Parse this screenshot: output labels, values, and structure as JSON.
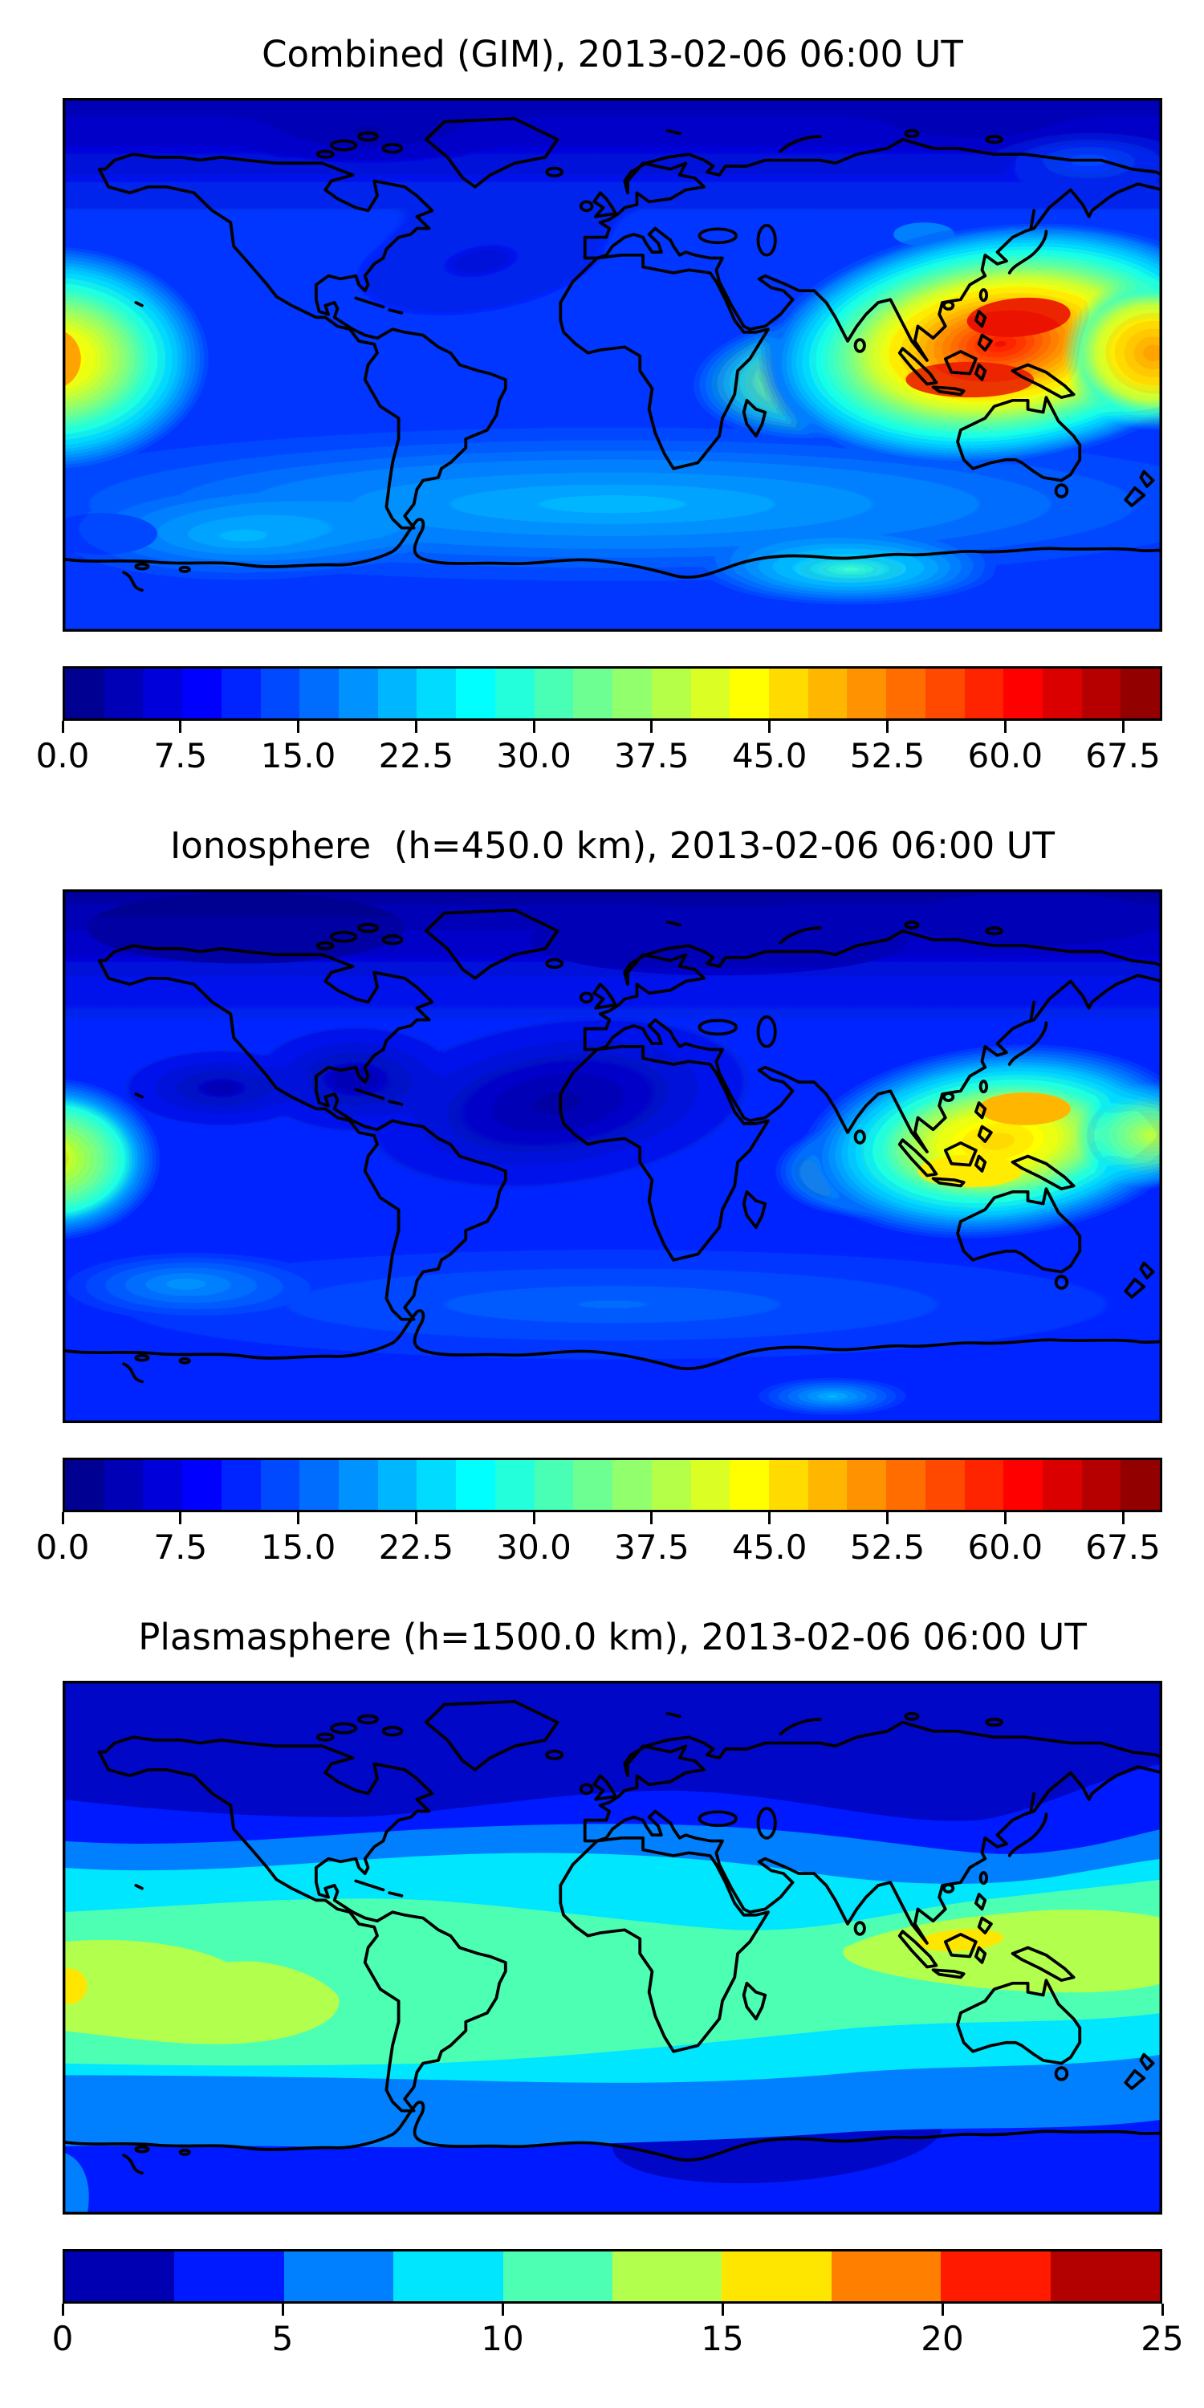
{
  "figure": {
    "background": "#ffffff",
    "panels": [
      {
        "id": "combined",
        "title": "Combined (GIM), 2013-02-06 06:00 UT",
        "colorbar": {
          "min": 0,
          "max": 70,
          "tick_values": [
            0,
            7.5,
            15,
            22.5,
            30,
            37.5,
            45,
            52.5,
            60,
            67.5
          ],
          "tick_labels": [
            "0.0",
            "7.5",
            "15.0",
            "22.5",
            "30.0",
            "37.5",
            "45.0",
            "52.5",
            "60.0",
            "67.5"
          ],
          "colors": [
            "#000092",
            "#0000B6",
            "#0000DB",
            "#0000FF",
            "#0024FF",
            "#0049FF",
            "#006DFF",
            "#0092FF",
            "#00B6FF",
            "#00DBFF",
            "#00FFFF",
            "#24FFDB",
            "#49FFB6",
            "#6DFF92",
            "#92FF6D",
            "#B6FF49",
            "#DBFF24",
            "#FFFF00",
            "#FFDB00",
            "#FFB600",
            "#FF9200",
            "#FF6D00",
            "#FF4900",
            "#FF2400",
            "#FF0000",
            "#DB0000",
            "#B60000",
            "#920000"
          ]
        }
      },
      {
        "id": "ionosphere",
        "title": "Ionosphere  (h=450.0 km), 2013-02-06 06:00 UT",
        "colorbar": {
          "min": 0,
          "max": 70,
          "tick_values": [
            0,
            7.5,
            15,
            22.5,
            30,
            37.5,
            45,
            52.5,
            60,
            67.5
          ],
          "tick_labels": [
            "0.0",
            "7.5",
            "15.0",
            "22.5",
            "30.0",
            "37.5",
            "45.0",
            "52.5",
            "60.0",
            "67.5"
          ],
          "colors": [
            "#000092",
            "#0000B6",
            "#0000DB",
            "#0000FF",
            "#0024FF",
            "#0049FF",
            "#006DFF",
            "#0092FF",
            "#00B6FF",
            "#00DBFF",
            "#00FFFF",
            "#24FFDB",
            "#49FFB6",
            "#6DFF92",
            "#92FF6D",
            "#B6FF49",
            "#DBFF24",
            "#FFFF00",
            "#FFDB00",
            "#FFB600",
            "#FF9200",
            "#FF6D00",
            "#FF4900",
            "#FF2400",
            "#FF0000",
            "#DB0000",
            "#B60000",
            "#920000"
          ]
        }
      },
      {
        "id": "plasmasphere",
        "title": "Plasmasphere (h=1500.0 km), 2013-02-06 06:00 UT",
        "colorbar": {
          "min": 0,
          "max": 25,
          "tick_values": [
            0,
            5,
            10,
            15,
            20,
            25
          ],
          "tick_labels": [
            "0",
            "5",
            "10",
            "15",
            "20",
            "25"
          ],
          "colors": [
            "#0000B3",
            "#001AFF",
            "#0080FF",
            "#00E6FF",
            "#4DFFB3",
            "#B3FF4D",
            "#FFE600",
            "#FF8000",
            "#FF1A00",
            "#B30000"
          ]
        }
      }
    ]
  },
  "chart_data": [
    {
      "type": "heatmap",
      "title": "Combined (GIM), 2013-02-06 06:00 UT",
      "projection": "equirectangular world map, lon -180..180, lat -90..90, black coastlines",
      "colormap": "jet",
      "levels": "filled contours 0 to 70 TECU, step 2.5",
      "colorbar_ticks": [
        0,
        7.5,
        15,
        22.5,
        30,
        37.5,
        45,
        52.5,
        60,
        67.5
      ],
      "legend_position": "horizontal colorbar below map",
      "features": [
        {
          "name": "primary maximum (equatorial anomaly, W Pacific / SE Asia)",
          "lon": 133,
          "lat": 16,
          "value_approx": 62
        },
        {
          "name": "secondary maximum core over Indonesia",
          "lon": 118,
          "lat": -5,
          "value_approx": 57
        },
        {
          "name": "secondary maximum at left map edge (central Pacific)",
          "lon": -180,
          "lat": -2,
          "value_approx": 47
        },
        {
          "name": "equatorial ridge over Indian Ocean / India",
          "lon": 75,
          "lat": 8,
          "value_approx": 40
        },
        {
          "name": "Arctic / high-latitude minimum band",
          "lat": 70,
          "value_approx": 5
        },
        {
          "name": "North Atlantic low",
          "lon": -40,
          "lat": 30,
          "value_approx": 12
        },
        {
          "name": "southern mid-latitude cyan band",
          "lat": -45,
          "value_approx": 22
        }
      ]
    },
    {
      "type": "heatmap",
      "title": "Ionosphere  (h=450.0 km), 2013-02-06 06:00 UT",
      "projection": "equirectangular world map, lon -180..180, lat -90..90, black coastlines",
      "colormap": "jet",
      "levels": "filled contours 0 to 70 TECU, step 2.5",
      "colorbar_ticks": [
        0,
        7.5,
        15,
        22.5,
        30,
        37.5,
        45,
        52.5,
        60,
        67.5
      ],
      "legend_position": "horizontal colorbar below map",
      "features": [
        {
          "name": "primary maximum east of Philippines",
          "lon": 135,
          "lat": 16,
          "value_approx": 50
        },
        {
          "name": "secondary yellow core over Indonesia",
          "lon": 118,
          "lat": -5,
          "value_approx": 45
        },
        {
          "name": "green-yellow maximum at left map edge (central Pacific)",
          "lon": -180,
          "lat": -3,
          "value_approx": 33
        },
        {
          "name": "deep minimum over Atlantic / North Africa / Caribbean",
          "lon": -20,
          "lat": 18,
          "value_approx": 3
        },
        {
          "name": "Arctic minimum band",
          "lat": 70,
          "value_approx": 4
        },
        {
          "name": "southern mid-latitude band",
          "lat": -45,
          "value_approx": 15
        }
      ]
    },
    {
      "type": "heatmap",
      "title": "Plasmasphere (h=1500.0 km), 2013-02-06 06:00 UT",
      "projection": "equirectangular world map, lon -180..180, lat -90..90, black coastlines",
      "colormap": "jet",
      "levels": "filled contours 0 to 25 TECU, step 2.5 (10 bins)",
      "colorbar_ticks": [
        0,
        5,
        10,
        15,
        20,
        25
      ],
      "legend_position": "horizontal colorbar below map",
      "features": [
        {
          "name": "yellow maximum over Borneo / Indonesia",
          "lon": 113,
          "lat": -3,
          "value_approx": 16
        },
        {
          "name": "yellow spot at left map edge",
          "lon": -180,
          "lat": -13,
          "value_approx": 16
        },
        {
          "name": "green-yellow equatorial belt (Pacific and Indonesia lobes)",
          "lat": -12,
          "value_approx": 14
        },
        {
          "name": "aquamarine belt across equator / South America",
          "lat": 0,
          "value_approx": 11
        },
        {
          "name": "dark navy polar cap band (north)",
          "lat": 65,
          "value_approx": 1.5
        },
        {
          "name": "dark navy blob, southern Indian Ocean / Antarctic",
          "lon": 55,
          "lat": -65,
          "value_approx": 1.5
        }
      ]
    }
  ]
}
